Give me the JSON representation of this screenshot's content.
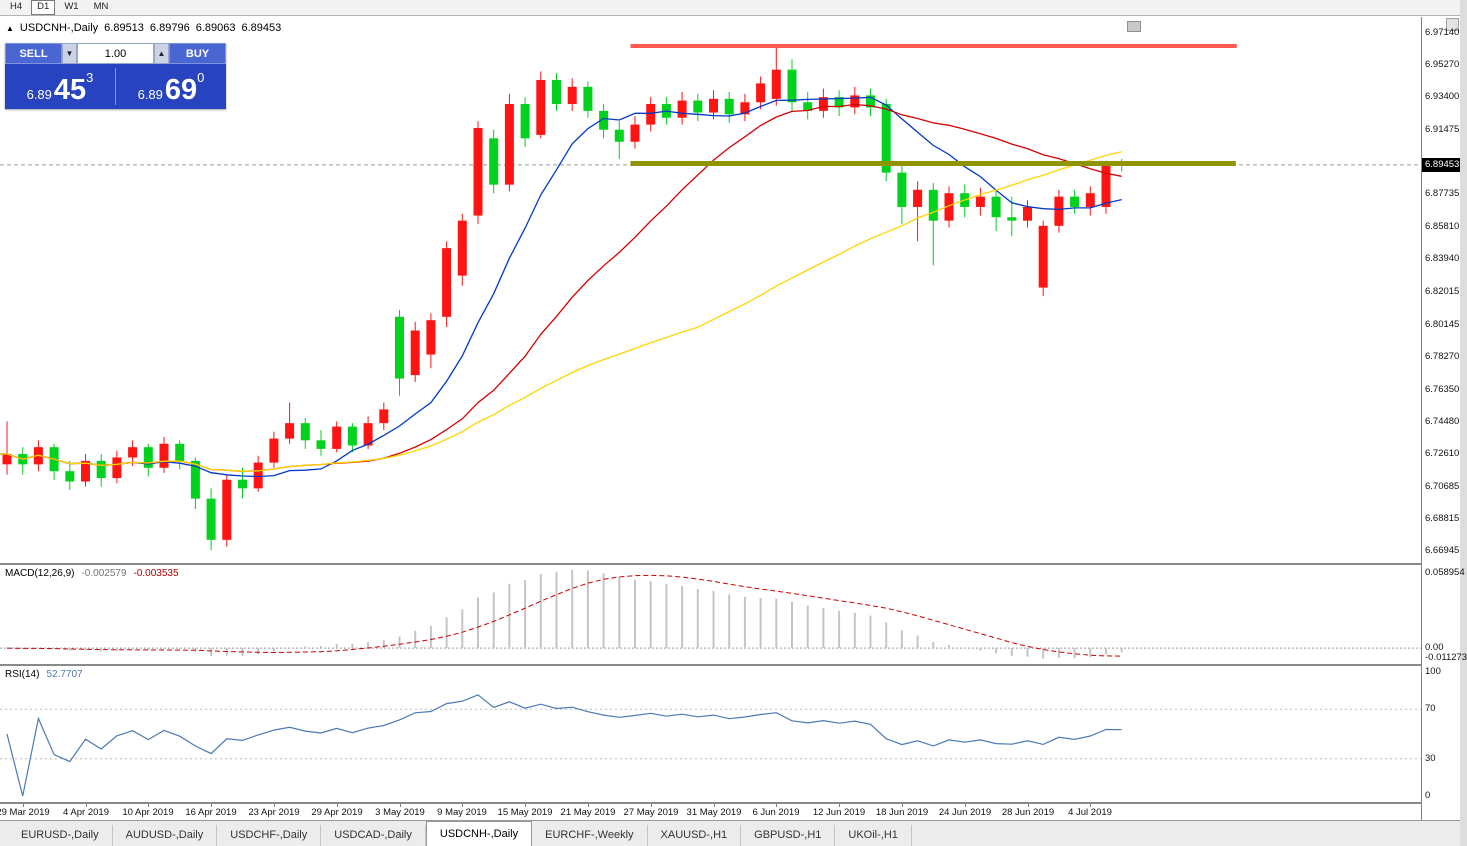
{
  "toolbar": {
    "timeframes": [
      {
        "label": "H4",
        "active": false
      },
      {
        "label": "D1",
        "active": true
      },
      {
        "label": "W1",
        "active": false
      },
      {
        "label": "MN",
        "active": false
      }
    ]
  },
  "chart_header": {
    "marker": "▲",
    "title": "USDCNH-,Daily",
    "open": "6.89513",
    "high": "6.89796",
    "low": "6.89063",
    "close": "6.89453"
  },
  "trade_panel": {
    "sell_label": "SELL",
    "buy_label": "BUY",
    "volume": "1.00",
    "spin_down_icon": "▼",
    "spin_up_icon": "▲",
    "sell": {
      "base": "6.89",
      "big": "45",
      "sup": "3"
    },
    "buy": {
      "base": "6.89",
      "big": "69",
      "sup": "0"
    }
  },
  "price_axis": {
    "labels": [
      "6.97140",
      "6.95270",
      "6.93400",
      "6.91475",
      "6.87735",
      "6.85810",
      "6.83940",
      "6.82015",
      "6.80145",
      "6.78270",
      "6.76350",
      "6.74480",
      "6.72610",
      "6.70685",
      "6.68815",
      "6.66945"
    ],
    "current": "6.89453"
  },
  "time_axis": {
    "labels": [
      {
        "text": "29 Mar 2019",
        "index": 1
      },
      {
        "text": "4 Apr 2019",
        "index": 5
      },
      {
        "text": "10 Apr 2019",
        "index": 9
      },
      {
        "text": "16 Apr 2019",
        "index": 13
      },
      {
        "text": "23 Apr 2019",
        "index": 17
      },
      {
        "text": "29 Apr 2019",
        "index": 21
      },
      {
        "text": "3 May 2019",
        "index": 25
      },
      {
        "text": "9 May 2019",
        "index": 29
      },
      {
        "text": "15 May 2019",
        "index": 33
      },
      {
        "text": "21 May 2019",
        "index": 37
      },
      {
        "text": "27 May 2019",
        "index": 41
      },
      {
        "text": "31 May 2019",
        "index": 45
      },
      {
        "text": "6 Jun 2019",
        "index": 49
      },
      {
        "text": "12 Jun 2019",
        "index": 53
      },
      {
        "text": "18 Jun 2019",
        "index": 57
      },
      {
        "text": "24 Jun 2019",
        "index": 61
      },
      {
        "text": "28 Jun 2019",
        "index": 65
      },
      {
        "text": "4 Jul 2019",
        "index": 69
      }
    ]
  },
  "indicators": {
    "macd": {
      "label": "MACD(12,26,9)",
      "main_value": "-0.002579",
      "signal_value": "-0.003535",
      "axis_top": "0.058954",
      "axis_zero": "0.00",
      "axis_bottom": "-0.011273"
    },
    "rsi": {
      "label": "RSI(14)",
      "value": "52.7707",
      "axis": [
        "100",
        "70",
        "30",
        "0"
      ]
    }
  },
  "tabs": [
    {
      "label": "EURUSD-,Daily",
      "active": false
    },
    {
      "label": "AUDUSD-,Daily",
      "active": false
    },
    {
      "label": "USDCHF-,Daily",
      "active": false
    },
    {
      "label": "USDCAD-,Daily",
      "active": false
    },
    {
      "label": "USDCNH-,Daily",
      "active": true
    },
    {
      "label": "EURCHF-,Weekly",
      "active": false
    },
    {
      "label": "XAUUSD-,H1",
      "active": false
    },
    {
      "label": "GBPUSD-,H1",
      "active": false
    },
    {
      "label": "UKOil-,H1",
      "active": false
    }
  ],
  "colors": {
    "bull": "#ff1414",
    "bear": "#00d21e",
    "ma_fast": "#0038c8",
    "ma_mid": "#d40000",
    "ma_slow": "#ffd400",
    "macd_hist": "#c4c4c4",
    "macd_signal": "#cc0000",
    "rsi_line": "#4a7ab5",
    "resistance_line": "#ff5a52",
    "support_line": "#8f9400",
    "bid_line": "#9a9a9a",
    "trade_panel_bg": "#2743c0",
    "trade_button_bg": "#4a66d2"
  },
  "chart_data": {
    "type": "candlestick",
    "title": "USDCNH-,Daily",
    "y_range": [
      6.6625,
      6.9807
    ],
    "bid": 6.89453,
    "ma_periods": [
      9,
      21,
      45
    ],
    "hlines": [
      {
        "price": 6.9638,
        "width": 4,
        "x1": 0.4437,
        "x2": 0.8704,
        "role": "resistance"
      },
      {
        "price": 6.8953,
        "width": 5,
        "x1": 0.4437,
        "x2": 0.8697,
        "role": "support"
      }
    ],
    "macd": {
      "fast": 12,
      "slow": 26,
      "signal": 9,
      "scale_max": 0.058954,
      "scale_min": -0.011273
    },
    "rsi": {
      "period": 14,
      "levels": [
        70,
        30
      ]
    },
    "candles": [
      [
        6.72,
        6.745,
        6.714,
        6.726
      ],
      [
        6.726,
        6.73,
        6.714,
        6.72
      ],
      [
        6.72,
        6.734,
        6.716,
        6.73
      ],
      [
        6.73,
        6.732,
        6.711,
        6.716
      ],
      [
        6.716,
        6.722,
        6.705,
        6.71
      ],
      [
        6.71,
        6.726,
        6.707,
        6.722
      ],
      [
        6.722,
        6.726,
        6.707,
        6.712
      ],
      [
        6.712,
        6.728,
        6.709,
        6.724
      ],
      [
        6.724,
        6.734,
        6.719,
        6.73
      ],
      [
        6.73,
        6.732,
        6.713,
        6.718
      ],
      [
        6.718,
        6.736,
        6.715,
        6.732
      ],
      [
        6.732,
        6.734,
        6.717,
        6.722
      ],
      [
        6.722,
        6.724,
        6.694,
        6.7
      ],
      [
        6.7,
        6.706,
        6.67,
        6.676
      ],
      [
        6.676,
        6.714,
        6.672,
        6.711
      ],
      [
        6.711,
        6.718,
        6.7,
        6.706
      ],
      [
        6.706,
        6.725,
        6.704,
        6.721
      ],
      [
        6.721,
        6.739,
        6.718,
        6.735
      ],
      [
        6.735,
        6.756,
        6.732,
        6.744
      ],
      [
        6.744,
        6.747,
        6.729,
        6.734
      ],
      [
        6.734,
        6.74,
        6.725,
        6.729
      ],
      [
        6.729,
        6.745,
        6.727,
        6.742
      ],
      [
        6.742,
        6.744,
        6.727,
        6.731
      ],
      [
        6.731,
        6.748,
        6.729,
        6.744
      ],
      [
        6.744,
        6.756,
        6.74,
        6.752
      ],
      [
        6.806,
        6.81,
        6.76,
        6.77
      ],
      [
        6.772,
        6.803,
        6.768,
        6.798
      ],
      [
        6.784,
        6.808,
        6.776,
        6.804
      ],
      [
        6.806,
        6.85,
        6.8,
        6.846
      ],
      [
        6.83,
        6.866,
        6.824,
        6.862
      ],
      [
        6.865,
        6.92,
        6.86,
        6.916
      ],
      [
        6.91,
        6.915,
        6.878,
        6.883
      ],
      [
        6.883,
        6.936,
        6.879,
        6.93
      ],
      [
        6.93,
        6.934,
        6.905,
        6.91
      ],
      [
        6.912,
        6.949,
        6.91,
        6.944
      ],
      [
        6.944,
        6.948,
        6.926,
        6.93
      ],
      [
        6.93,
        6.945,
        6.926,
        6.94
      ],
      [
        6.94,
        6.943,
        6.922,
        6.926
      ],
      [
        6.926,
        6.93,
        6.91,
        6.915
      ],
      [
        6.915,
        6.92,
        6.898,
        6.908
      ],
      [
        6.908,
        6.923,
        6.904,
        6.918
      ],
      [
        6.918,
        6.934,
        6.914,
        6.93
      ],
      [
        6.93,
        6.934,
        6.918,
        6.922
      ],
      [
        6.922,
        6.937,
        6.918,
        6.932
      ],
      [
        6.932,
        6.936,
        6.92,
        6.925
      ],
      [
        6.925,
        6.938,
        6.921,
        6.933
      ],
      [
        6.933,
        6.937,
        6.919,
        6.924
      ],
      [
        6.924,
        6.936,
        6.92,
        6.931
      ],
      [
        6.931,
        6.946,
        6.927,
        6.942
      ],
      [
        6.933,
        6.964,
        6.929,
        6.95
      ],
      [
        6.95,
        6.956,
        6.926,
        6.931
      ],
      [
        6.931,
        6.937,
        6.921,
        6.926
      ],
      [
        6.926,
        6.939,
        6.922,
        6.934
      ],
      [
        6.934,
        6.938,
        6.923,
        6.928
      ],
      [
        6.928,
        6.94,
        6.924,
        6.935
      ],
      [
        6.935,
        6.939,
        6.923,
        6.928
      ],
      [
        6.93,
        6.933,
        6.885,
        6.89
      ],
      [
        6.89,
        6.895,
        6.86,
        6.87
      ],
      [
        6.87,
        6.885,
        6.85,
        6.88
      ],
      [
        6.88,
        6.884,
        6.836,
        6.862
      ],
      [
        6.862,
        6.882,
        6.858,
        6.878
      ],
      [
        6.878,
        6.883,
        6.864,
        6.87
      ],
      [
        6.87,
        6.881,
        6.865,
        6.876
      ],
      [
        6.876,
        6.88,
        6.856,
        6.864
      ],
      [
        6.864,
        6.876,
        6.853,
        6.862
      ],
      [
        6.862,
        6.874,
        6.858,
        6.87
      ],
      [
        6.823,
        6.862,
        6.818,
        6.859
      ],
      [
        6.859,
        6.88,
        6.855,
        6.876
      ],
      [
        6.876,
        6.88,
        6.866,
        6.87
      ],
      [
        6.87,
        6.882,
        6.865,
        6.878
      ],
      [
        6.87,
        6.897,
        6.866,
        6.895
      ],
      [
        6.89513,
        6.89796,
        6.89063,
        6.89453
      ]
    ]
  }
}
